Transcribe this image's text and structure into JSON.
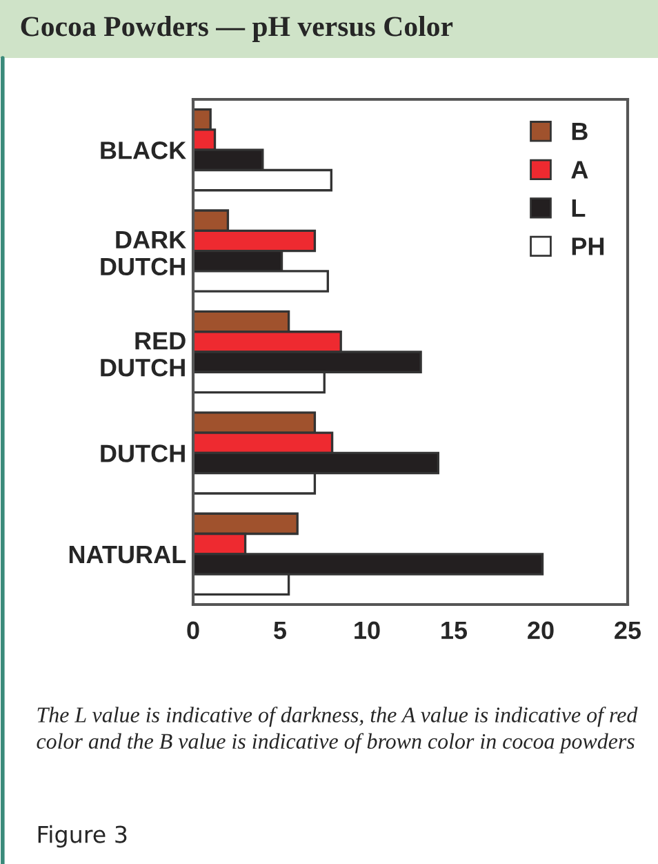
{
  "chart_data": {
    "type": "bar",
    "orientation": "horizontal",
    "title": "Cocoa Powders — pH versus Color",
    "categories": [
      "BLACK",
      "DARK\nDUTCH",
      "RED\nDUTCH",
      "DUTCH",
      "NATURAL"
    ],
    "series": [
      {
        "name": "B",
        "color": "#a0522d",
        "values": [
          1.0,
          2.0,
          5.5,
          7.0,
          6.0
        ]
      },
      {
        "name": "A",
        "color": "#ee2a30",
        "values": [
          1.25,
          7.0,
          8.5,
          8.0,
          3.0
        ]
      },
      {
        "name": "L",
        "color": "#231f20",
        "values": [
          4.0,
          5.1,
          13.1,
          14.1,
          20.1
        ]
      },
      {
        "name": "PH",
        "color": "#ffffff",
        "values": [
          7.95,
          7.75,
          7.55,
          7.0,
          5.5
        ]
      }
    ],
    "xlim": [
      0,
      25
    ],
    "xticks": [
      0,
      5,
      10,
      15,
      20,
      25
    ],
    "grid": false,
    "legend": "top right",
    "annotations": [
      "The L value is indicative of darkness, the A value is indicative of red color and the B value is indicative of brown color in cocoa powders",
      "Figure 3"
    ]
  }
}
